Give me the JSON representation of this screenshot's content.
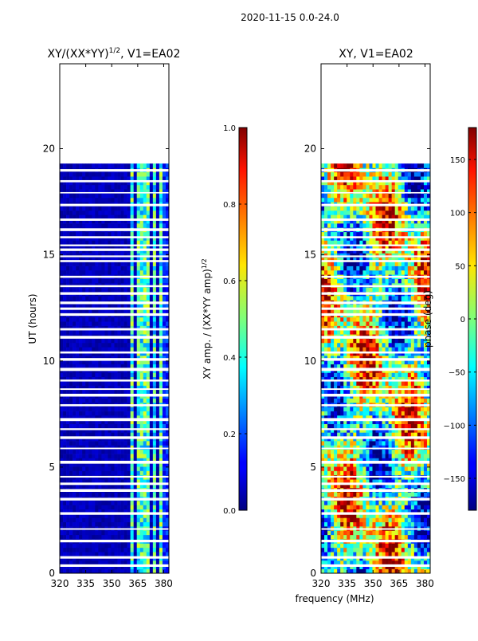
{
  "figure": {
    "suptitle": "2020-11-15 0.0-24.0",
    "xlabel": "frequency (MHz)"
  },
  "chart_data": [
    {
      "type": "heatmap",
      "title_main": "XY/(XX*YY)",
      "title_exp": "1/2",
      "title_tail": ", V1=EA02",
      "ylabel": "UT (hours)",
      "x_ticks": [
        "320",
        "335",
        "350",
        "365",
        "380"
      ],
      "x_tick_values": [
        320,
        335,
        350,
        365,
        380
      ],
      "xlim": [
        320,
        383
      ],
      "y_ticks": [
        "0",
        "5",
        "10",
        "15",
        "20"
      ],
      "y_tick_values": [
        0,
        5,
        10,
        15,
        20
      ],
      "ylim": [
        0,
        24
      ],
      "data_end_hour": 19.3,
      "hot_channel_bands_mhz": [
        [
          360,
          363
        ],
        [
          365,
          368
        ],
        [
          369,
          371
        ],
        [
          373,
          375
        ],
        [
          377,
          380
        ]
      ],
      "colormap": "jet",
      "colorbar": {
        "label_main": "XY amp. / (XX*YY amp)",
        "label_exp": "1/2",
        "ticks": [
          "0.0",
          "0.2",
          "0.4",
          "0.6",
          "0.8",
          "1.0"
        ],
        "tick_values": [
          0.0,
          0.2,
          0.4,
          0.6,
          0.8,
          1.0
        ],
        "range": [
          0.0,
          1.0
        ]
      }
    },
    {
      "type": "heatmap",
      "title": "XY, V1=EA02",
      "x_ticks": [
        "320",
        "335",
        "350",
        "365",
        "380"
      ],
      "x_tick_values": [
        320,
        335,
        350,
        365,
        380
      ],
      "xlim": [
        320,
        383
      ],
      "y_ticks": [
        "0",
        "5",
        "10",
        "15",
        "20"
      ],
      "y_tick_values": [
        0,
        5,
        10,
        15,
        20
      ],
      "ylim": [
        0,
        24
      ],
      "data_end_hour": 19.3,
      "colormap": "jet",
      "colorbar": {
        "label": "phase (deg)",
        "ticks": [
          "150",
          "100",
          "50",
          "0",
          "−50",
          "−100",
          "−150"
        ],
        "tick_values": [
          150,
          100,
          50,
          0,
          -50,
          -100,
          -150
        ],
        "range": [
          -180,
          180
        ]
      }
    }
  ]
}
